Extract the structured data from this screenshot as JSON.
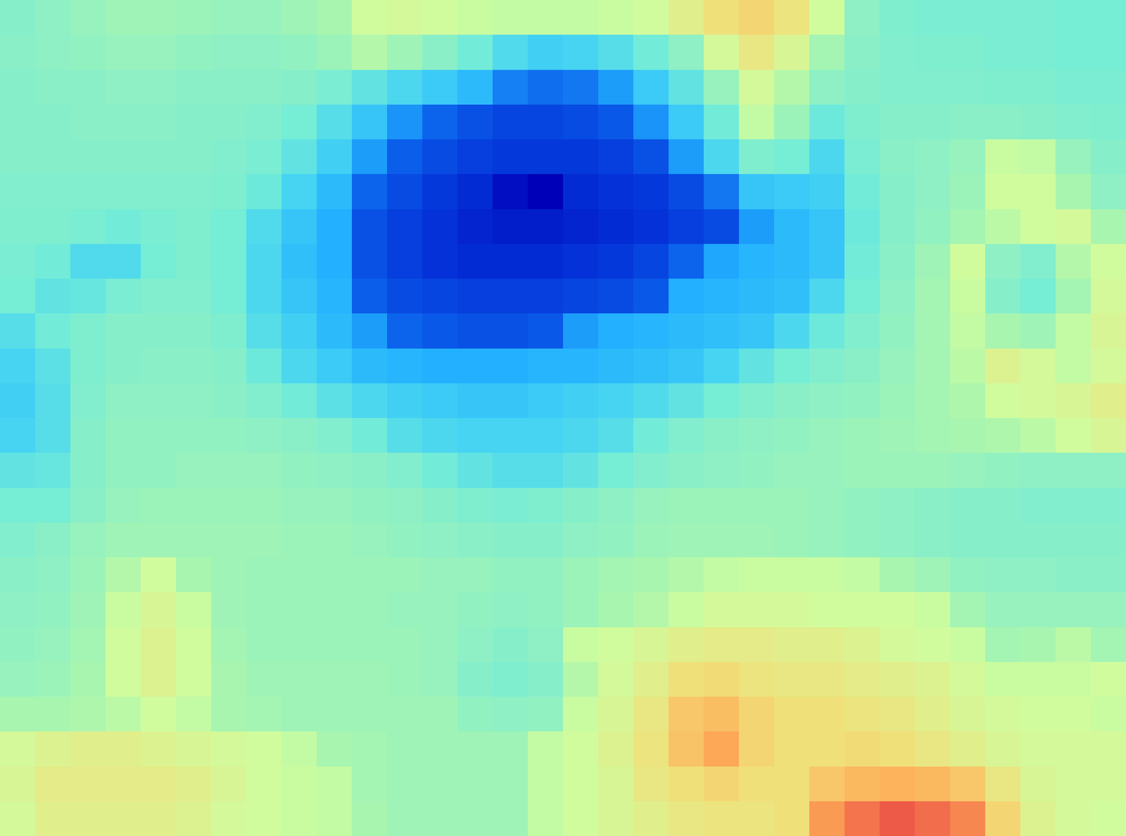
{
  "chart_data": {
    "type": "heatmap",
    "tick_labels": false,
    "zlim": [
      0,
      10
    ],
    "values": [
      [
        4.8,
        5.0,
        5.2,
        5.4,
        5.4,
        5.3,
        5.2,
        5.2,
        5.4,
        5.6,
        6.2,
        6.3,
        6.2,
        6.1,
        6.0,
        6.0,
        6.0,
        6.1,
        6.2,
        6.6,
        7.0,
        7.2,
        6.9,
        6.2,
        5.0,
        4.6,
        4.5,
        4.5,
        4.5,
        4.5,
        4.4,
        4.4
      ],
      [
        4.9,
        5.0,
        5.1,
        5.2,
        5.2,
        5.1,
        5.0,
        5.0,
        5.1,
        5.3,
        5.8,
        5.4,
        4.9,
        4.3,
        3.7,
        3.4,
        3.5,
        3.8,
        4.3,
        5.0,
        6.3,
        6.8,
        6.4,
        5.5,
        4.9,
        4.7,
        4.6,
        4.6,
        4.5,
        4.5,
        4.4,
        4.4
      ],
      [
        4.8,
        4.9,
        4.9,
        5.0,
        5.0,
        4.9,
        4.9,
        4.9,
        4.8,
        4.5,
        4.0,
        3.6,
        3.3,
        3.0,
        2.3,
        2.1,
        2.2,
        2.6,
        3.3,
        4.0,
        5.2,
        6.3,
        5.8,
        5.0,
        4.8,
        4.7,
        4.7,
        4.7,
        4.6,
        4.6,
        4.5,
        4.5
      ],
      [
        4.8,
        4.8,
        4.9,
        4.9,
        4.9,
        4.8,
        4.8,
        4.7,
        4.4,
        3.8,
        3.2,
        2.5,
        2.0,
        1.7,
        1.5,
        1.5,
        1.6,
        1.8,
        2.5,
        3.3,
        4.3,
        6.0,
        5.3,
        4.2,
        4.6,
        4.8,
        4.8,
        4.9,
        4.9,
        4.8,
        4.7,
        4.6
      ],
      [
        4.8,
        4.8,
        4.8,
        4.8,
        4.8,
        4.8,
        4.7,
        4.5,
        4.0,
        3.4,
        2.6,
        1.9,
        1.6,
        1.4,
        1.3,
        1.3,
        1.3,
        1.4,
        1.7,
        2.6,
        3.6,
        4.6,
        4.4,
        3.6,
        4.5,
        4.9,
        5.0,
        5.2,
        6.1,
        6.0,
        5.2,
        4.8
      ],
      [
        4.7,
        4.7,
        4.7,
        4.7,
        4.7,
        4.7,
        4.6,
        4.2,
        3.5,
        3.0,
        2.0,
        1.6,
        1.3,
        1.1,
        0.7,
        0.5,
        1.1,
        1.2,
        1.3,
        1.6,
        2.2,
        3.2,
        3.3,
        3.4,
        4.3,
        4.8,
        5.0,
        5.3,
        6.2,
        6.2,
        5.6,
        5.0
      ],
      [
        4.6,
        4.6,
        4.5,
        4.3,
        4.5,
        4.6,
        4.4,
        3.7,
        3.2,
        2.8,
        1.7,
        1.4,
        1.2,
        1.0,
        0.9,
        0.9,
        1.0,
        1.1,
        1.2,
        1.4,
        1.6,
        2.6,
        3.0,
        3.2,
        4.2,
        4.8,
        5.1,
        5.5,
        5.9,
        6.2,
        6.3,
        5.6
      ],
      [
        4.5,
        4.3,
        3.7,
        3.7,
        4.4,
        4.6,
        4.4,
        3.6,
        3.1,
        2.8,
        1.7,
        1.4,
        1.2,
        1.1,
        1.1,
        1.1,
        1.2,
        1.3,
        1.5,
        2.0,
        2.7,
        2.9,
        3.0,
        3.2,
        4.3,
        4.9,
        5.4,
        6.2,
        5.0,
        4.7,
        5.8,
        6.2
      ],
      [
        4.4,
        4.0,
        4.1,
        4.5,
        4.7,
        4.7,
        4.4,
        3.6,
        3.2,
        2.9,
        1.9,
        1.6,
        1.5,
        1.4,
        1.4,
        1.4,
        1.5,
        1.6,
        1.8,
        2.8,
        2.9,
        3.0,
        3.1,
        3.6,
        4.4,
        5.0,
        5.5,
        6.1,
        4.8,
        4.4,
        5.5,
        6.3
      ],
      [
        3.8,
        4.3,
        4.6,
        4.8,
        4.8,
        4.8,
        4.6,
        3.8,
        3.4,
        3.0,
        2.6,
        2.0,
        1.8,
        1.7,
        1.7,
        1.8,
        2.6,
        2.8,
        2.9,
        3.0,
        3.1,
        3.2,
        3.6,
        4.2,
        4.7,
        5.1,
        5.5,
        6.0,
        5.6,
        5.4,
        6.0,
        6.4
      ],
      [
        3.5,
        3.9,
        4.6,
        4.8,
        4.9,
        4.9,
        4.8,
        4.2,
        3.6,
        3.3,
        3.0,
        2.9,
        2.8,
        2.8,
        2.8,
        2.9,
        2.9,
        3.0,
        3.1,
        3.2,
        3.5,
        4.0,
        4.4,
        4.7,
        4.9,
        5.2,
        5.5,
        5.9,
        6.5,
        6.3,
        6.0,
        6.3
      ],
      [
        3.4,
        3.8,
        4.7,
        5.0,
        5.0,
        5.0,
        4.9,
        4.7,
        4.3,
        3.9,
        3.6,
        3.4,
        3.3,
        3.2,
        3.2,
        3.3,
        3.4,
        3.5,
        3.7,
        4.0,
        4.4,
        4.7,
        4.9,
        5.0,
        5.1,
        5.3,
        5.5,
        5.7,
        6.2,
        6.3,
        6.4,
        6.6
      ],
      [
        3.5,
        3.8,
        4.8,
        5.1,
        5.1,
        5.1,
        5.1,
        5.0,
        4.9,
        4.7,
        4.3,
        3.8,
        3.6,
        3.5,
        3.5,
        3.5,
        3.6,
        3.8,
        4.3,
        4.7,
        4.9,
        5.0,
        5.1,
        5.2,
        5.3,
        5.4,
        5.5,
        5.6,
        5.7,
        5.9,
        6.2,
        6.4
      ],
      [
        4.0,
        4.1,
        4.8,
        5.1,
        5.1,
        5.2,
        5.2,
        5.2,
        5.1,
        5.0,
        4.9,
        4.7,
        4.3,
        4.0,
        3.8,
        3.8,
        4.0,
        4.4,
        4.7,
        4.9,
        5.0,
        5.1,
        5.2,
        5.2,
        5.3,
        5.3,
        5.3,
        5.2,
        5.1,
        5.0,
        5.0,
        5.0
      ],
      [
        4.4,
        4.4,
        4.9,
        5.2,
        5.3,
        5.3,
        5.3,
        5.3,
        5.2,
        5.2,
        5.1,
        5.0,
        4.8,
        4.6,
        4.5,
        4.6,
        4.8,
        5.0,
        5.2,
        5.3,
        5.3,
        5.3,
        5.3,
        5.2,
        5.1,
        5.0,
        4.9,
        4.8,
        4.8,
        4.7,
        4.7,
        4.7
      ],
      [
        4.7,
        4.9,
        5.2,
        5.4,
        5.4,
        5.4,
        5.4,
        5.4,
        5.3,
        5.3,
        5.2,
        5.1,
        5.0,
        4.9,
        4.8,
        4.8,
        5.0,
        5.1,
        5.3,
        5.4,
        5.4,
        5.4,
        5.3,
        5.2,
        5.1,
        5.0,
        4.9,
        4.8,
        4.8,
        4.8,
        4.8,
        4.8
      ],
      [
        4.9,
        5.0,
        5.3,
        5.8,
        6.2,
        5.6,
        5.4,
        5.3,
        5.3,
        5.3,
        5.3,
        5.3,
        5.2,
        5.2,
        5.1,
        5.1,
        5.3,
        5.5,
        5.6,
        5.8,
        6.0,
        6.1,
        6.1,
        6.1,
        6.0,
        5.6,
        5.4,
        5.1,
        5.0,
        5.0,
        4.9,
        4.9
      ],
      [
        5.0,
        5.1,
        5.4,
        6.1,
        6.4,
        6.1,
        5.4,
        5.3,
        5.3,
        5.3,
        5.3,
        5.2,
        5.2,
        5.1,
        5.0,
        5.1,
        5.3,
        5.6,
        5.8,
        6.1,
        6.3,
        6.3,
        6.3,
        6.2,
        6.2,
        6.2,
        6.1,
        5.5,
        5.2,
        5.2,
        5.2,
        5.2
      ],
      [
        5.1,
        5.2,
        5.5,
        6.2,
        6.5,
        6.2,
        5.5,
        5.3,
        5.3,
        5.3,
        5.3,
        5.3,
        5.2,
        5.0,
        4.8,
        5.0,
        6.1,
        6.2,
        6.4,
        6.6,
        6.7,
        6.7,
        6.6,
        6.6,
        6.5,
        6.3,
        6.2,
        6.1,
        5.5,
        5.6,
        5.9,
        5.5
      ],
      [
        5.2,
        5.3,
        5.6,
        6.2,
        6.5,
        6.2,
        5.6,
        5.4,
        5.4,
        5.4,
        5.4,
        5.3,
        5.2,
        4.8,
        4.6,
        4.8,
        5.8,
        6.3,
        6.6,
        7.0,
        7.1,
        6.9,
        6.8,
        6.8,
        6.7,
        6.6,
        6.5,
        6.3,
        6.1,
        6.1,
        6.1,
        6.2
      ],
      [
        5.6,
        5.6,
        5.7,
        5.9,
        6.2,
        6.0,
        5.6,
        5.5,
        5.4,
        5.4,
        5.4,
        5.4,
        5.4,
        5.1,
        5.0,
        5.1,
        6.1,
        6.4,
        6.8,
        7.5,
        7.7,
        7.2,
        7.0,
        7.0,
        6.9,
        6.8,
        6.6,
        6.4,
        6.3,
        6.2,
        6.2,
        6.1
      ],
      [
        6.3,
        6.5,
        6.6,
        6.6,
        6.5,
        6.4,
        6.3,
        6.2,
        6.0,
        5.6,
        5.5,
        5.4,
        5.4,
        5.4,
        5.4,
        6.0,
        6.2,
        6.5,
        6.9,
        7.6,
        8.1,
        7.2,
        7.0,
        7.0,
        7.1,
        7.0,
        6.8,
        6.6,
        6.4,
        6.3,
        6.3,
        6.3
      ],
      [
        6.4,
        6.7,
        6.7,
        6.7,
        6.7,
        6.6,
        6.4,
        6.2,
        6.1,
        6.0,
        5.5,
        5.4,
        5.4,
        5.4,
        5.4,
        6.0,
        6.2,
        6.4,
        6.8,
        7.0,
        7.2,
        7.0,
        7.0,
        7.5,
        7.8,
        7.9,
        7.8,
        7.5,
        6.8,
        6.4,
        6.3,
        6.3
      ],
      [
        6.3,
        6.6,
        6.6,
        6.6,
        6.6,
        6.5,
        6.3,
        6.2,
        6.1,
        6.0,
        5.6,
        5.4,
        5.4,
        5.4,
        5.4,
        6.0,
        6.2,
        6.4,
        6.6,
        6.8,
        6.9,
        6.9,
        7.0,
        8.3,
        8.9,
        9.3,
        9.0,
        8.6,
        7.2,
        6.5,
        6.3,
        6.2
      ]
    ]
  }
}
